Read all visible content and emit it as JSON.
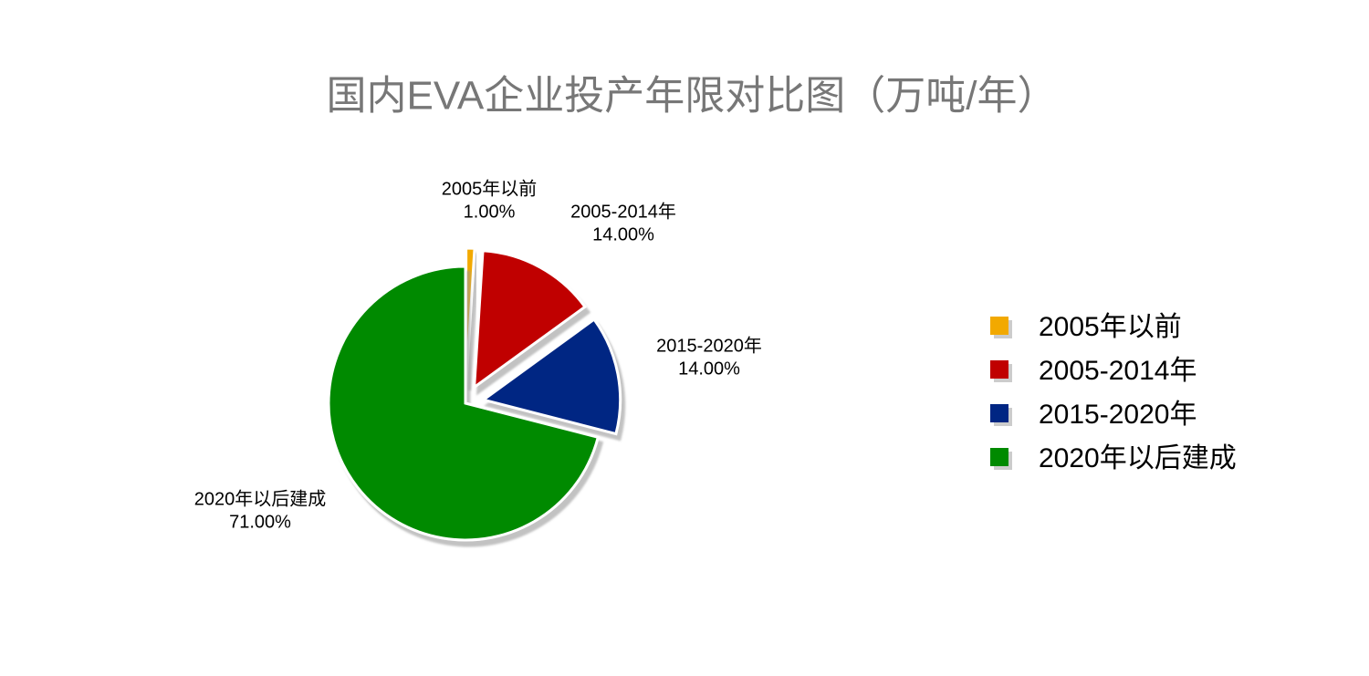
{
  "chart_data": {
    "type": "pie",
    "title": "国内EVA企业投产年限对比图（万吨/年）",
    "categories": [
      "2005年以前",
      "2005-2014年",
      "2015-2020年",
      "2020年以后建成"
    ],
    "values": [
      1,
      14,
      14,
      71
    ],
    "value_labels": [
      "1.00%",
      "14.00%",
      "14.00%",
      "71.00%"
    ],
    "colors": [
      "#f2a900",
      "#c00000",
      "#002683",
      "#008a00"
    ],
    "legend": "right"
  }
}
